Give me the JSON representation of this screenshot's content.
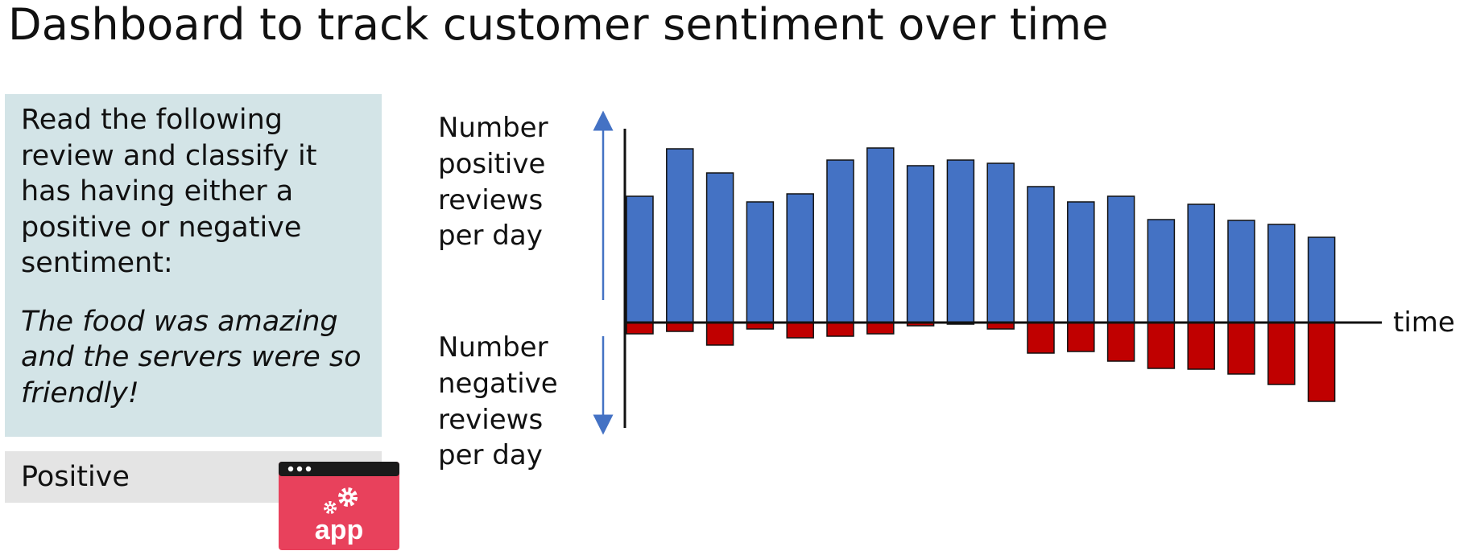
{
  "title": "Dashboard to track customer sentiment over time",
  "prompt": {
    "instruction": "Read the following review and classify it has having either a positive or negative sentiment:",
    "review": "The food was amazing and the servers were so friendly!"
  },
  "result": {
    "label": "Positive"
  },
  "app_icon": {
    "icon": "app-gears-icon",
    "label": "app",
    "color": "#e8415c"
  },
  "chart_data": {
    "type": "bar",
    "title": "",
    "xlabel": "time",
    "ylabel_positive": [
      "Number",
      "positive",
      "reviews",
      "per day"
    ],
    "ylabel_negative": [
      "Number",
      "negative",
      "reviews",
      "per day"
    ],
    "categories": [
      "",
      "",
      "",
      "",
      "",
      "",
      "",
      "",
      "",
      "",
      "",
      "",
      "",
      "",
      "",
      "",
      "",
      ""
    ],
    "series": [
      {
        "color": "#4472c4",
        "values": [
          157,
          216,
          186,
          150,
          160,
          202,
          217,
          195,
          202,
          198,
          169,
          150,
          157,
          128,
          147,
          127,
          122,
          106
        ]
      },
      {
        "color": "#c00000",
        "values": [
          -14,
          -11,
          -28,
          -8,
          -19,
          -17,
          -14,
          -4,
          -2,
          -8,
          -38,
          -36,
          -48,
          -57,
          -58,
          -64,
          -77,
          -98
        ]
      }
    ],
    "ylim": [
      -140,
      260
    ],
    "grid": false,
    "legend": "none"
  }
}
